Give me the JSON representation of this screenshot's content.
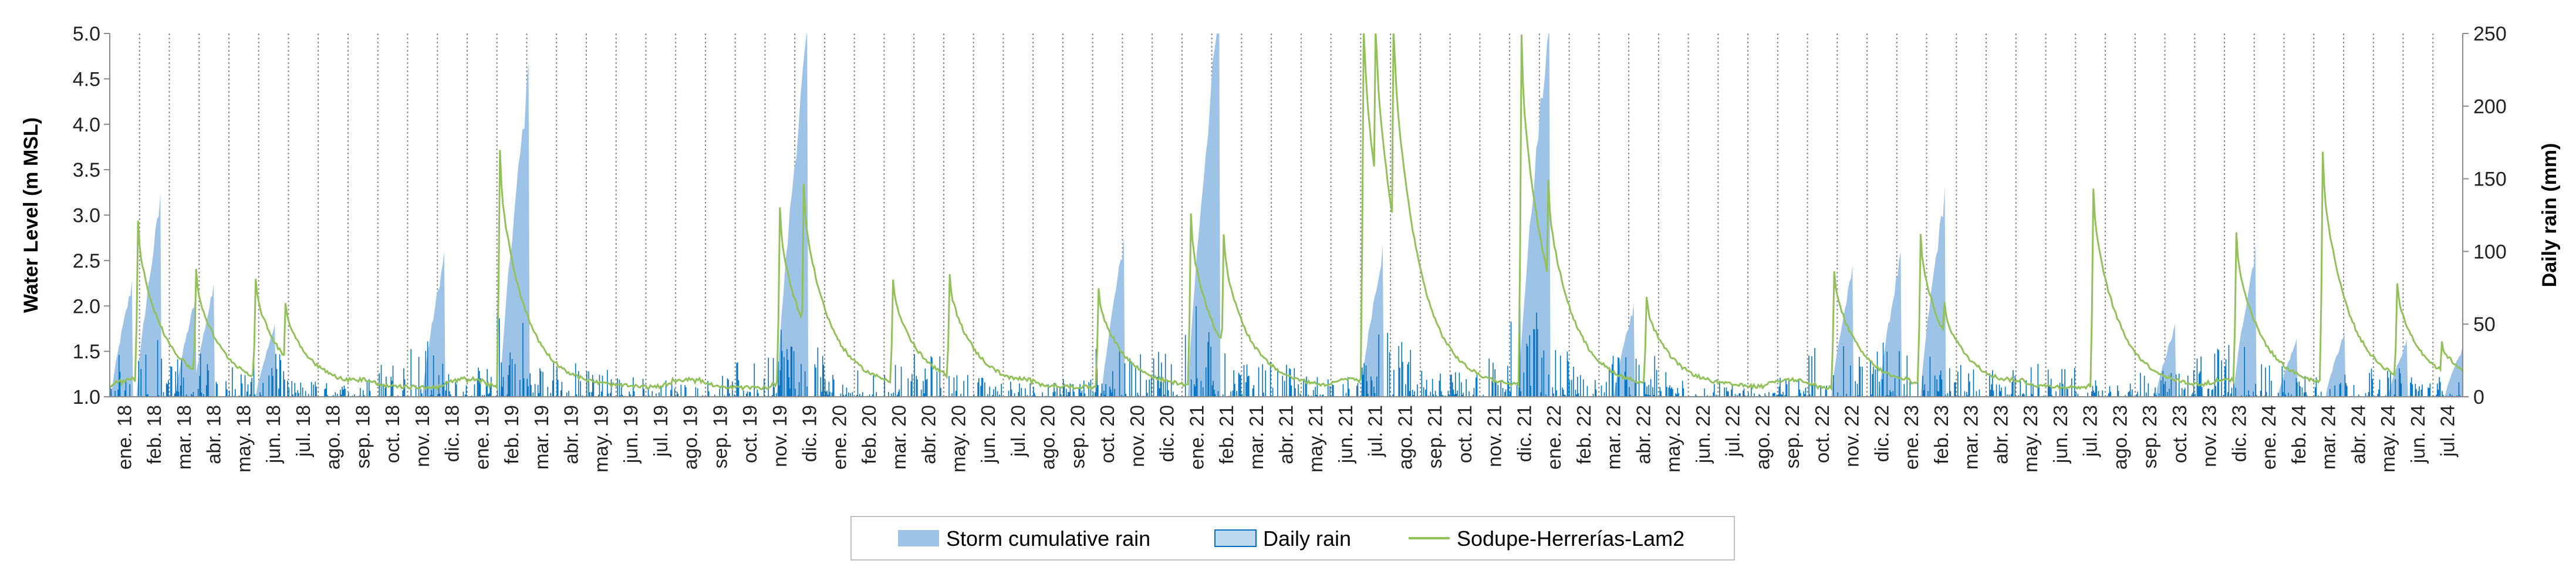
{
  "chart_data": {
    "type": "area",
    "xlabel": "",
    "ylabel_left": "Water Level (m MSL)",
    "ylabel_right": "Daily rain (mm)",
    "ylim_left": [
      1.0,
      5.0
    ],
    "ylim_right": [
      0,
      250
    ],
    "yticks_left": [
      "1.0",
      "1.5",
      "2.0",
      "2.5",
      "3.0",
      "3.5",
      "4.0",
      "4.5",
      "5.0"
    ],
    "yticks_right": [
      "0",
      "50",
      "100",
      "150",
      "200",
      "250"
    ],
    "grid": "vertical dotted lines at month boundaries",
    "legend_position": "bottom-center",
    "categories": [
      "ene. 18",
      "feb. 18",
      "mar. 18",
      "abr. 18",
      "may. 18",
      "jun. 18",
      "jul. 18",
      "ago. 18",
      "sep. 18",
      "oct. 18",
      "nov. 18",
      "dic. 18",
      "ene. 19",
      "feb. 19",
      "mar. 19",
      "abr. 19",
      "may. 19",
      "jun. 19",
      "jul. 19",
      "ago. 19",
      "sep. 19",
      "oct. 19",
      "nov. 19",
      "dic. 19",
      "ene. 20",
      "feb. 20",
      "mar. 20",
      "abr. 20",
      "may. 20",
      "jun. 20",
      "jul. 20",
      "ago. 20",
      "sep. 20",
      "oct. 20",
      "nov. 20",
      "dic. 20",
      "ene. 21",
      "feb. 21",
      "mar. 21",
      "abr. 21",
      "may. 21",
      "jun. 21",
      "jul. 21",
      "ago. 21",
      "sep. 21",
      "oct. 21",
      "nov. 21",
      "dic. 21",
      "ene. 22",
      "feb. 22",
      "mar. 22",
      "abr. 22",
      "may. 22",
      "jun. 22",
      "jul. 22",
      "ago. 22",
      "sep. 22",
      "oct. 22",
      "nov. 22",
      "dic. 22",
      "ene. 23",
      "feb. 23",
      "mar. 23",
      "abr. 23",
      "may. 23",
      "jun. 23",
      "jul. 23",
      "ago. 23",
      "sep. 23",
      "oct. 23",
      "nov. 23",
      "dic. 23",
      "ene. 24",
      "feb. 24",
      "mar. 24",
      "abr. 24",
      "may. 24",
      "jun. 24",
      "jul. 24"
    ],
    "series": [
      {
        "name": "Storm cumulative rain",
        "axis": "right",
        "color": "#9dc3e6",
        "unit": "mm",
        "events": [
          {
            "m": 0.05,
            "peak": 80
          },
          {
            "m": 0.9,
            "peak": 140
          },
          {
            "m": 2.2,
            "peak": 70
          },
          {
            "m": 2.8,
            "peak": 78
          },
          {
            "m": 4.9,
            "peak": 50
          },
          {
            "m": 10.5,
            "peak": 100
          },
          {
            "m": 13.1,
            "peak": 230
          },
          {
            "m": 22.4,
            "peak": 260
          },
          {
            "m": 33.3,
            "peak": 110
          },
          {
            "m": 36.2,
            "peak": 280
          },
          {
            "m": 42.0,
            "peak": 105
          },
          {
            "m": 47.3,
            "peak": 270
          },
          {
            "m": 50.5,
            "peak": 65
          },
          {
            "m": 57.8,
            "peak": 90
          },
          {
            "m": 59.4,
            "peak": 100
          },
          {
            "m": 60.8,
            "peak": 145
          },
          {
            "m": 68.7,
            "peak": 50
          },
          {
            "m": 71.3,
            "peak": 105
          },
          {
            "m": 72.8,
            "peak": 40
          },
          {
            "m": 74.4,
            "peak": 45
          },
          {
            "m": 76.5,
            "peak": 40
          },
          {
            "m": 78.4,
            "peak": 35
          }
        ]
      },
      {
        "name": "Daily rain",
        "axis": "right",
        "color": "#0070c0",
        "unit": "mm",
        "months_daily_max": [
          30,
          45,
          28,
          35,
          25,
          30,
          12,
          10,
          14,
          28,
          40,
          25,
          22,
          62,
          30,
          25,
          20,
          15,
          12,
          10,
          15,
          25,
          60,
          35,
          25,
          20,
          28,
          30,
          22,
          15,
          12,
          10,
          14,
          35,
          30,
          40,
          65,
          30,
          25,
          22,
          18,
          15,
          45,
          40,
          18,
          22,
          30,
          65,
          35,
          25,
          30,
          28,
          18,
          12,
          10,
          10,
          14,
          40,
          35,
          40,
          45,
          30,
          22,
          20,
          25,
          20,
          12,
          10,
          18,
          25,
          35,
          40,
          25,
          25,
          30,
          20,
          20,
          15,
          15
        ]
      },
      {
        "name": "Sodupe-Herrerías-Lam2",
        "axis": "left",
        "color": "#92c15a",
        "unit": "m MSL",
        "baseline": 1.1,
        "peaks": [
          {
            "m": 0.95,
            "v": 2.95
          },
          {
            "m": 2.9,
            "v": 2.4
          },
          {
            "m": 4.9,
            "v": 2.3
          },
          {
            "m": 5.9,
            "v": 2.05
          },
          {
            "m": 13.1,
            "v": 3.7
          },
          {
            "m": 22.5,
            "v": 3.1
          },
          {
            "m": 23.3,
            "v": 3.35
          },
          {
            "m": 26.3,
            "v": 2.3
          },
          {
            "m": 28.2,
            "v": 2.35
          },
          {
            "m": 33.2,
            "v": 2.2
          },
          {
            "m": 36.3,
            "v": 3.0
          },
          {
            "m": 37.4,
            "v": 2.8
          },
          {
            "m": 42.1,
            "v": 5.3
          },
          {
            "m": 42.5,
            "v": 5.3
          },
          {
            "m": 43.1,
            "v": 5.3
          },
          {
            "m": 47.4,
            "v": 5.0
          },
          {
            "m": 48.3,
            "v": 3.4
          },
          {
            "m": 51.6,
            "v": 2.1
          },
          {
            "m": 57.9,
            "v": 2.4
          },
          {
            "m": 60.8,
            "v": 2.8
          },
          {
            "m": 61.6,
            "v": 2.05
          },
          {
            "m": 66.6,
            "v": 3.3
          },
          {
            "m": 71.4,
            "v": 2.8
          },
          {
            "m": 74.3,
            "v": 3.7
          },
          {
            "m": 76.8,
            "v": 2.25
          },
          {
            "m": 78.3,
            "v": 1.6
          }
        ]
      }
    ]
  }
}
